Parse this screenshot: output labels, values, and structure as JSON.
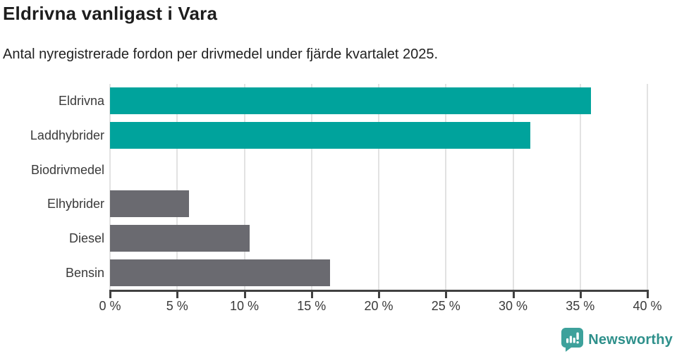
{
  "chart": {
    "title": "Eldrivna vanligast i Vara",
    "subtitle": "Antal nyregistrerade fordon per drivmedel under fjärde kvartalet 2025."
  },
  "chart_data": {
    "type": "bar",
    "orientation": "horizontal",
    "title": "Eldrivna vanligast i Vara",
    "subtitle": "Antal nyregistrerade fordon per drivmedel under fjärde kvartalet 2025.",
    "categories": [
      "Eldrivna",
      "Laddhybrider",
      "Biodrivmedel",
      "Elhybrider",
      "Diesel",
      "Bensin"
    ],
    "values": [
      35.8,
      31.3,
      0,
      5.9,
      10.4,
      16.4
    ],
    "unit": "%",
    "bar_color_keys": [
      "teal",
      "teal",
      "none",
      "gray",
      "gray",
      "gray"
    ],
    "palette": {
      "teal": "#00a39c",
      "gray": "#6a6a70"
    },
    "xlim": [
      0,
      40
    ],
    "x_ticks": [
      0,
      5,
      10,
      15,
      20,
      25,
      30,
      35,
      40
    ],
    "x_tick_labels": [
      "0 %",
      "5 %",
      "10 %",
      "15 %",
      "20 %",
      "25 %",
      "30 %",
      "35 %",
      "40 %"
    ],
    "grid": true,
    "gridline_color": "#e2e2e2",
    "legend": "none"
  },
  "footer": {
    "brand": "Newsworthy"
  }
}
